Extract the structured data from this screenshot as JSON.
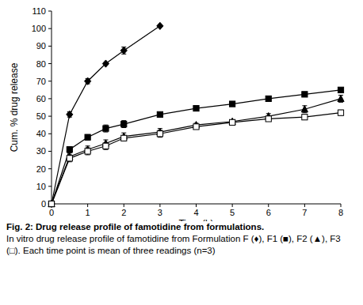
{
  "chart_data": {
    "type": "line",
    "title": "Fig. 2: Drug release profile of famotidine from formulations.",
    "subtitle": "In vitro drug release profile of famotidine from Formulation F (♦), F1 (■), F2 (▲), F3 (□). Each time point is mean of three readings (n=3)",
    "x_label": "Time (h)",
    "y_label": "Cum. % drug release",
    "x": [
      0,
      0.5,
      1,
      1.5,
      2,
      3,
      4,
      5,
      6,
      7,
      8
    ],
    "xlim": [
      0,
      8
    ],
    "xticks": [
      0,
      1,
      2,
      3,
      4,
      5,
      6,
      7,
      8
    ],
    "ylim": [
      0,
      110
    ],
    "yticks": [
      0,
      10,
      20,
      30,
      40,
      50,
      60,
      70,
      80,
      90,
      100,
      110
    ],
    "grid": false,
    "series": [
      {
        "name": "F",
        "color": "#000000",
        "marker": "diamond",
        "line_style": "solid",
        "values": [
          0,
          51,
          70,
          80,
          87.5,
          101.5,
          null,
          null,
          null,
          null,
          null
        ],
        "errors": [
          0,
          1.5,
          1.5,
          0.5,
          2,
          0.5,
          null,
          null,
          null,
          null,
          null
        ]
      },
      {
        "name": "F1",
        "color": "#000000",
        "marker": "square",
        "line_style": "solid",
        "values": [
          0,
          31,
          38,
          43,
          45.5,
          51,
          54.5,
          57,
          60,
          62.5,
          65
        ],
        "errors": [
          0,
          1.5,
          1.5,
          2,
          2,
          1,
          1,
          1,
          0.5,
          0.5,
          1
        ]
      },
      {
        "name": "F2",
        "color": "#000000",
        "marker": "triangle",
        "line_style": "solid",
        "values": [
          0,
          27,
          31,
          34.5,
          38.5,
          41,
          45,
          47,
          50,
          54,
          60
        ],
        "errors": [
          0,
          2,
          2,
          2,
          2,
          2,
          1,
          1,
          1.5,
          2,
          2
        ]
      },
      {
        "name": "F3",
        "color": "#000000",
        "marker": "square-open",
        "line_style": "solid",
        "values": [
          0,
          26,
          30,
          33,
          37.5,
          40,
          44,
          46.5,
          48.5,
          49.5,
          52
        ],
        "errors": [
          0,
          2,
          2,
          2,
          1.5,
          2,
          1,
          1,
          1,
          1.5,
          1.5
        ]
      }
    ]
  }
}
